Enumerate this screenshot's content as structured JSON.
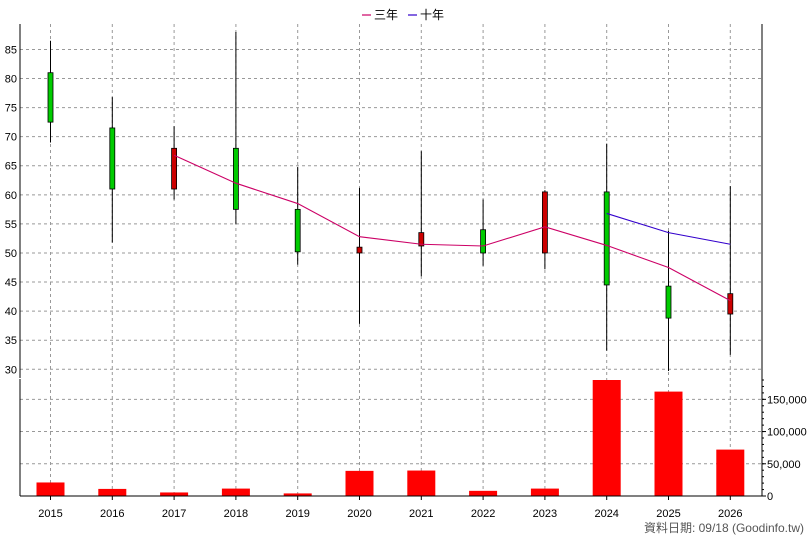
{
  "legend": [
    {
      "label": "三年",
      "color": "#cc0066"
    },
    {
      "label": "十年",
      "color": "#3300cc"
    }
  ],
  "footer": "資料日期: 09/18 (Goodinfo.tw)",
  "chart_data": {
    "type": "candlestick+bar",
    "categories": [
      "2015",
      "2016",
      "2017",
      "2018",
      "2019",
      "2020",
      "2021",
      "2022",
      "2023",
      "2024",
      "2025",
      "2026"
    ],
    "price": {
      "ylim": [
        28.5,
        88
      ],
      "yticks": [
        30,
        35,
        40,
        45,
        50,
        55,
        60,
        65,
        70,
        75,
        80,
        85
      ],
      "candles": [
        {
          "year": "2015",
          "open": 72.5,
          "close": 81.0,
          "high": 86.5,
          "low": 69.0,
          "color": "#00cc00"
        },
        {
          "year": "2016",
          "open": 61.0,
          "close": 71.5,
          "high": 76.8,
          "low": 51.8,
          "color": "#00cc00"
        },
        {
          "year": "2017",
          "open": 68.0,
          "close": 61.0,
          "high": 71.8,
          "low": 59.2,
          "color": "#cc0000"
        },
        {
          "year": "2018",
          "open": 57.5,
          "close": 68.0,
          "high": 88.0,
          "low": 55.0,
          "color": "#00cc00"
        },
        {
          "year": "2019",
          "open": 50.2,
          "close": 57.5,
          "high": 64.8,
          "low": 48.0,
          "color": "#00cc00"
        },
        {
          "year": "2020",
          "open": 51.0,
          "close": 50.0,
          "high": 61.2,
          "low": 37.8,
          "color": "#cc0000"
        },
        {
          "year": "2021",
          "open": 53.5,
          "close": 51.2,
          "high": 67.5,
          "low": 46.0,
          "color": "#cc0000"
        },
        {
          "year": "2022",
          "open": 50.0,
          "close": 54.0,
          "high": 59.2,
          "low": 47.8,
          "color": "#00cc00"
        },
        {
          "year": "2023",
          "open": 60.5,
          "close": 50.0,
          "high": 60.8,
          "low": 47.2,
          "color": "#cc0000"
        },
        {
          "year": "2024",
          "open": 44.5,
          "close": 60.5,
          "high": 68.8,
          "low": 33.2,
          "color": "#00cc00"
        },
        {
          "year": "2025",
          "open": 38.8,
          "close": 44.3,
          "high": 53.8,
          "low": 29.7,
          "color": "#00cc00"
        },
        {
          "year": "2026",
          "open": 43.0,
          "close": 39.5,
          "high": 61.5,
          "low": 32.5,
          "color": "#cc0000"
        }
      ],
      "series": [
        {
          "name": "三年",
          "color": "#cc0066",
          "points": [
            [
              "2017",
              66.8
            ],
            [
              "2018",
              62.0
            ],
            [
              "2019",
              58.5
            ],
            [
              "2020",
              52.8
            ],
            [
              "2021",
              51.5
            ],
            [
              "2022",
              51.2
            ],
            [
              "2023",
              54.5
            ],
            [
              "2024",
              51.3
            ],
            [
              "2025",
              47.5
            ],
            [
              "2026",
              41.8
            ]
          ]
        },
        {
          "name": "十年",
          "color": "#3300cc",
          "points": [
            [
              "2024",
              56.8
            ],
            [
              "2025",
              53.5
            ],
            [
              "2026",
              51.5
            ]
          ]
        }
      ]
    },
    "volume": {
      "ylim": [
        0,
        180000
      ],
      "yticks": [
        0,
        50000,
        100000,
        150000
      ],
      "ytick_labels": [
        "0",
        "50,000",
        "100,000",
        "150,000"
      ],
      "color": "#ff0000",
      "values": [
        21000,
        11000,
        5500,
        11500,
        4000,
        39000,
        39500,
        8000,
        11500,
        180000,
        162000,
        72000
      ]
    }
  }
}
